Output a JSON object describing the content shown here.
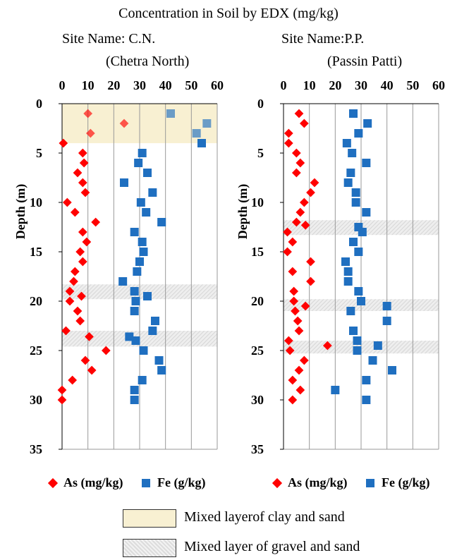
{
  "title": "Concentration in Soil by EDX (mg/kg)",
  "panels": [
    {
      "site_line1": "Site Name: C.N.",
      "site_line2": "(Chetra North)"
    },
    {
      "site_line1": "Site Name:P.P.",
      "site_line2": "(Passin Patti)"
    }
  ],
  "legend": {
    "as_label": "As (mg/kg)",
    "fe_label": "Fe (g/kg)"
  },
  "layers": {
    "clay_label": "Mixed layerof clay and sand",
    "gravel_label": "Mixed layer of gravel and sand"
  },
  "colors": {
    "as": "#ff0000",
    "fe": "#1f6fc0",
    "clay_band": "#f8f0d2",
    "gravel_band": "#e5e5e5"
  },
  "chart_data": [
    {
      "type": "scatter",
      "site": "C.N.",
      "ylabel": "Depth (m)",
      "xlim": [
        0,
        60
      ],
      "ylim": [
        0,
        35
      ],
      "y_inverted": true,
      "x_ticks": [
        0,
        10,
        20,
        30,
        40,
        50,
        60
      ],
      "y_ticks": [
        0,
        5,
        10,
        15,
        20,
        25,
        30,
        35
      ],
      "grid": "vertical",
      "bands": [
        {
          "kind": "clay",
          "depth": [
            0,
            4
          ]
        },
        {
          "kind": "gravel",
          "depth": [
            18.3,
            19.8
          ]
        },
        {
          "kind": "gravel",
          "depth": [
            23,
            24.6
          ]
        }
      ],
      "series": [
        {
          "name": "As (mg/kg)",
          "marker": "diamond",
          "points": [
            [
              10,
              1
            ],
            [
              24,
              2
            ],
            [
              11,
              3
            ],
            [
              0.5,
              4
            ],
            [
              8,
              5
            ],
            [
              8.5,
              6
            ],
            [
              6,
              7
            ],
            [
              8,
              8
            ],
            [
              9,
              9
            ],
            [
              2,
              10
            ],
            [
              5,
              11
            ],
            [
              13,
              12
            ],
            [
              8,
              13
            ],
            [
              9.5,
              14
            ],
            [
              7,
              15
            ],
            [
              8,
              16
            ],
            [
              5,
              17
            ],
            [
              4.5,
              18
            ],
            [
              3,
              19
            ],
            [
              7.5,
              19.5
            ],
            [
              3,
              20
            ],
            [
              6,
              21
            ],
            [
              7,
              22
            ],
            [
              1.5,
              23
            ],
            [
              10.5,
              23.6
            ],
            [
              17,
              25
            ],
            [
              9,
              26
            ],
            [
              11.5,
              27
            ],
            [
              4,
              28
            ],
            [
              0,
              29
            ],
            [
              0,
              30
            ]
          ]
        },
        {
          "name": "Fe (g/kg)",
          "marker": "square",
          "points": [
            [
              42,
              1
            ],
            [
              56,
              2
            ],
            [
              52,
              3
            ],
            [
              54,
              4
            ],
            [
              31,
              5
            ],
            [
              29.5,
              6
            ],
            [
              33,
              7
            ],
            [
              24,
              8
            ],
            [
              35,
              9
            ],
            [
              30.5,
              10
            ],
            [
              32.5,
              11
            ],
            [
              38.5,
              12
            ],
            [
              28,
              13
            ],
            [
              31,
              14
            ],
            [
              31.5,
              15
            ],
            [
              30,
              16
            ],
            [
              29,
              17
            ],
            [
              23.5,
              18
            ],
            [
              28,
              19
            ],
            [
              33,
              19.5
            ],
            [
              28.5,
              20
            ],
            [
              28,
              21
            ],
            [
              36,
              22
            ],
            [
              35,
              23
            ],
            [
              26,
              23.6
            ],
            [
              28.5,
              24
            ],
            [
              31.5,
              25
            ],
            [
              37.5,
              26
            ],
            [
              38.5,
              27
            ],
            [
              31,
              28
            ],
            [
              28,
              29
            ],
            [
              28,
              30
            ]
          ]
        }
      ]
    },
    {
      "type": "scatter",
      "site": "P.P.",
      "ylabel": "Depth (m)",
      "xlim": [
        0,
        60
      ],
      "ylim": [
        0,
        35
      ],
      "y_inverted": true,
      "x_ticks": [
        0,
        10,
        20,
        30,
        40,
        50,
        60
      ],
      "y_ticks": [
        0,
        5,
        10,
        15,
        20,
        25,
        30,
        35
      ],
      "grid": "vertical",
      "bands": [
        {
          "kind": "gravel",
          "depth": [
            11.8,
            13.3
          ]
        },
        {
          "kind": "gravel",
          "depth": [
            19.8,
            21
          ]
        },
        {
          "kind": "gravel",
          "depth": [
            24,
            25.3
          ]
        }
      ],
      "series": [
        {
          "name": "As (mg/kg)",
          "marker": "diamond",
          "points": [
            [
              6,
              1
            ],
            [
              8,
              2
            ],
            [
              2,
              3
            ],
            [
              2,
              4
            ],
            [
              5,
              5
            ],
            [
              6.5,
              6
            ],
            [
              5,
              7
            ],
            [
              12,
              8
            ],
            [
              10.5,
              9
            ],
            [
              8,
              10
            ],
            [
              6.5,
              11
            ],
            [
              5,
              12
            ],
            [
              8.5,
              12.3
            ],
            [
              1.5,
              13
            ],
            [
              3.5,
              14
            ],
            [
              1.5,
              15
            ],
            [
              10.5,
              16
            ],
            [
              3.5,
              17
            ],
            [
              10.5,
              18
            ],
            [
              4,
              19
            ],
            [
              4,
              20
            ],
            [
              8.5,
              20.5
            ],
            [
              4.5,
              21
            ],
            [
              5.5,
              22
            ],
            [
              6,
              23
            ],
            [
              2,
              24
            ],
            [
              17,
              24.5
            ],
            [
              2.5,
              25
            ],
            [
              8,
              26
            ],
            [
              6,
              27
            ],
            [
              3.5,
              28
            ],
            [
              6.5,
              29
            ],
            [
              3.5,
              30
            ]
          ]
        },
        {
          "name": "Fe (g/kg)",
          "marker": "square",
          "points": [
            [
              27,
              1
            ],
            [
              32.5,
              2
            ],
            [
              29,
              3
            ],
            [
              24.5,
              4
            ],
            [
              26.5,
              5
            ],
            [
              32,
              6
            ],
            [
              26,
              7
            ],
            [
              25,
              8
            ],
            [
              28,
              9
            ],
            [
              28,
              10
            ],
            [
              32,
              11
            ],
            [
              29,
              12.5
            ],
            [
              30.5,
              13
            ],
            [
              27,
              14
            ],
            [
              29,
              15
            ],
            [
              24,
              16
            ],
            [
              25,
              17
            ],
            [
              25,
              18
            ],
            [
              29,
              19
            ],
            [
              30,
              20
            ],
            [
              40,
              20.5
            ],
            [
              26,
              21
            ],
            [
              40,
              22
            ],
            [
              27,
              23
            ],
            [
              28.5,
              24
            ],
            [
              36.5,
              24.5
            ],
            [
              28.5,
              25
            ],
            [
              34.5,
              26
            ],
            [
              42,
              27
            ],
            [
              32,
              28
            ],
            [
              20,
              29
            ],
            [
              32,
              30
            ]
          ]
        }
      ]
    }
  ]
}
